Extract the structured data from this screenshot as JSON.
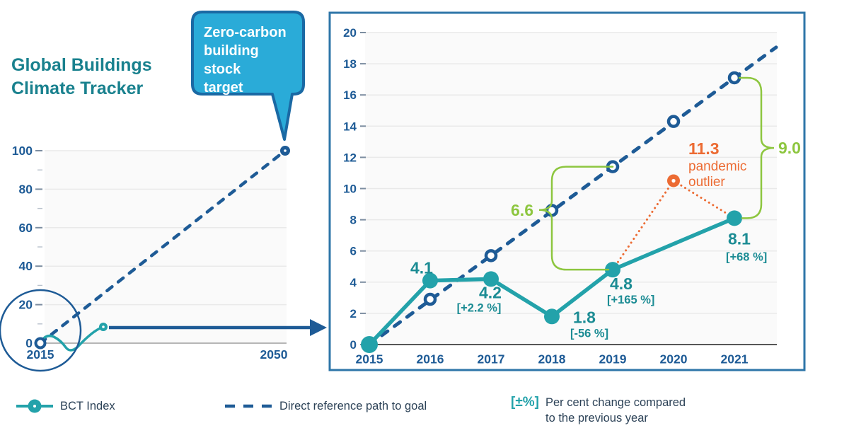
{
  "title": {
    "line1": "Global Buildings",
    "line2": "Climate Tracker"
  },
  "callout": {
    "text": "Zero-carbon building stock target",
    "lines": [
      "Zero-carbon",
      "building stock",
      "target"
    ]
  },
  "legend": {
    "bct_label": "BCT Index",
    "reference_label": "Direct reference path to goal",
    "pct_symbol": "[±%]",
    "pct_line1": "Per cent change compared",
    "pct_line2": "to the previous year"
  },
  "colors": {
    "teal": "#23A2AA",
    "label_teal": "#1C8C94",
    "title_teal": "#19818E",
    "navy": "#1E5B96",
    "orange": "#EC6B33",
    "green": "#8DC63F",
    "callout_fill": "#2AABD8",
    "callout_border": "#1A69A4",
    "panel_border": "#2E76A8",
    "legend_text": "#2C4257",
    "grid": "#E9E9E9",
    "axis_dark": "#3E3E3E",
    "axis_gray": "#9E9E9E",
    "tick": "#7C8DA0",
    "tick_minor": "#B9C2CC",
    "plot_bg": "#FAFAFA"
  },
  "chart_data": [
    {
      "id": "overview",
      "type": "line",
      "title": "Global Buildings Climate Tracker",
      "xlabel": "",
      "ylabel": "",
      "xlim": [
        2015,
        2050
      ],
      "ylim": [
        0,
        100
      ],
      "y_ticks": [
        0,
        20,
        40,
        60,
        80,
        100
      ],
      "x_ticks": [
        "2015",
        "2050"
      ],
      "grid": true,
      "series": [
        {
          "name": "Direct reference path to goal",
          "style": "dashed",
          "points": [
            {
              "x": 2015,
              "y": 0
            },
            {
              "x": 2050,
              "y": 100
            }
          ]
        },
        {
          "name": "BCT Index",
          "style": "solid",
          "points": [
            {
              "x": 2015,
              "y": 0
            },
            {
              "x": 2021,
              "y": 8.1
            }
          ]
        }
      ],
      "annotation_callout": "Zero-carbon building stock target"
    },
    {
      "id": "detail",
      "type": "line",
      "categories": [
        "2015",
        "2016",
        "2017",
        "2018",
        "2019",
        "2020",
        "2021"
      ],
      "ylim": [
        0,
        20
      ],
      "y_tick_step": 2,
      "grid": true,
      "series": [
        {
          "name": "Direct reference path to goal",
          "style": "dashed",
          "values": [
            0,
            2.9,
            5.7,
            8.6,
            11.4,
            14.3,
            17.1
          ]
        },
        {
          "name": "BCT Index",
          "style": "solid",
          "values": [
            0,
            4.1,
            4.2,
            1.8,
            4.8,
            null,
            8.1
          ]
        },
        {
          "name": "Pandemic outlier path",
          "style": "dotted",
          "values": [
            null,
            null,
            null,
            null,
            4.8,
            11.3,
            8.1
          ]
        }
      ],
      "point_labels": [
        {
          "year": "2016",
          "text": "4.1",
          "pct": ""
        },
        {
          "year": "2017",
          "text": "4.2",
          "pct": "[+2.2 %]"
        },
        {
          "year": "2018",
          "text": "1.8",
          "pct": "[-56 %]"
        },
        {
          "year": "2019",
          "text": "4.8",
          "pct": "[+165 %]"
        },
        {
          "year": "2021",
          "text": "8.1",
          "pct": "[+68 %]"
        }
      ],
      "outlier": {
        "year": "2020",
        "value": 11.3,
        "label": "11.3",
        "note_line1": "pandemic",
        "note_line2": "outlier",
        "plotted_at": 10.5
      },
      "gap_braces": [
        {
          "label": "6.6",
          "year": "2019",
          "from": 4.8,
          "to": 11.4,
          "side": "left"
        },
        {
          "label": "9.0",
          "year": "2021",
          "from": 8.1,
          "to": 17.1,
          "side": "right"
        }
      ]
    }
  ]
}
